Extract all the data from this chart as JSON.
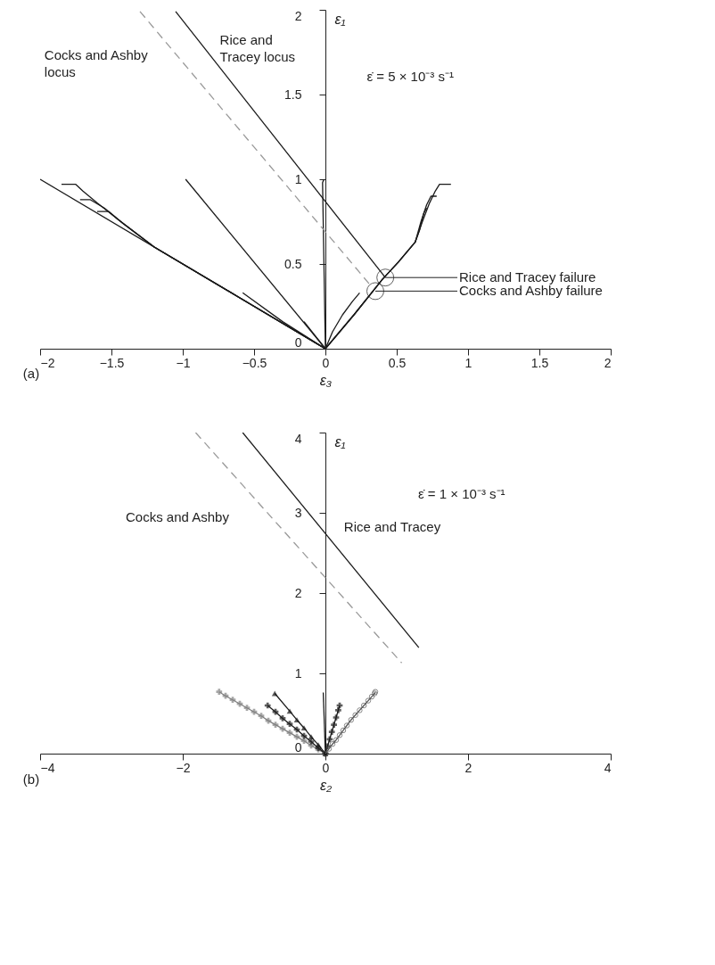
{
  "chart_data": [
    {
      "type": "line",
      "xlabel": "ε₃",
      "ylabel": "ε₁",
      "xlim": [
        -2,
        2
      ],
      "ylim": [
        0,
        2
      ],
      "xticks": [
        -2,
        -1.5,
        -1,
        -0.5,
        0,
        0.5,
        1,
        1.5,
        2
      ],
      "yticks": [
        0,
        0.5,
        1,
        1.5,
        2
      ],
      "annotations": [
        "(a)",
        "Cocks and Ashby\nlocus",
        "Rice and\nTracey locus",
        "ε̇ = 5 × 10⁻³ s⁻¹",
        {
          "text": "Rice and Tracey failure",
          "x": 0.42,
          "y": 0.42
        },
        {
          "text": "Cocks and Ashby failure",
          "x": 0.35,
          "y": 0.34
        }
      ],
      "series": [
        {
          "color": "#1a1a1a",
          "x": [
            0,
            -2
          ],
          "values": [
            0,
            1.0
          ]
        },
        {
          "color": "#1a1a1a",
          "x": [
            0,
            -0.6,
            -1.2,
            -1.45,
            -1.6,
            -1.7,
            -1.75,
            -1.85
          ],
          "values": [
            0,
            0.3,
            0.6,
            0.76,
            0.86,
            0.93,
            0.97,
            0.97
          ]
        },
        {
          "color": "#1a1a1a",
          "x": [
            0,
            -0.6,
            -1.2,
            -1.45,
            -1.55,
            -1.65,
            -1.72
          ],
          "values": [
            0,
            0.3,
            0.6,
            0.76,
            0.83,
            0.88,
            0.88
          ]
        },
        {
          "color": "#1a1a1a",
          "x": [
            0,
            -0.6,
            -1.2,
            -1.42,
            -1.52,
            -1.6
          ],
          "values": [
            0,
            0.3,
            0.6,
            0.74,
            0.81,
            0.81
          ]
        },
        {
          "color": "#1a1a1a",
          "x": [
            0,
            -0.3,
            -0.58
          ],
          "values": [
            0,
            0.16,
            0.33
          ]
        },
        {
          "color": "#1a1a1a",
          "x": [
            0,
            -0.98
          ],
          "values": [
            0,
            1.0
          ]
        },
        {
          "color": "#1a1a1a",
          "x": [
            0,
            -0.02,
            -0.01
          ],
          "values": [
            0,
            0.98,
            1.0
          ]
        },
        {
          "color": "#1a1a1a",
          "x": [
            0,
            -0.15
          ],
          "values": [
            0,
            0.16
          ]
        },
        {
          "color": "#1a1a1a",
          "x": [
            0,
            0.05,
            0.12,
            0.19,
            0.24
          ],
          "values": [
            0,
            0.1,
            0.2,
            0.28,
            0.33
          ]
        },
        {
          "color": "#1a1a1a",
          "x": [
            0,
            0.2,
            0.4,
            0.51,
            0.63,
            0.68,
            0.73,
            0.77,
            0.8,
            0.88
          ],
          "values": [
            0,
            0.2,
            0.41,
            0.51,
            0.63,
            0.75,
            0.86,
            0.93,
            0.97,
            0.97
          ]
        },
        {
          "color": "#1a1a1a",
          "x": [
            0,
            0.2,
            0.4,
            0.51,
            0.63,
            0.67,
            0.71,
            0.74,
            0.78
          ],
          "values": [
            0,
            0.2,
            0.41,
            0.51,
            0.63,
            0.75,
            0.85,
            0.9,
            0.9
          ]
        },
        {
          "color": "#1a1a1a",
          "x": [
            0,
            0.2,
            0.4,
            0.51,
            0.63,
            0.66,
            0.69,
            0.71
          ],
          "values": [
            0,
            0.2,
            0.41,
            0.51,
            0.63,
            0.7,
            0.8,
            0.83
          ]
        },
        {
          "color": "#1a1a1a",
          "x": [
            -1.05,
            0.42
          ],
          "values": [
            1.99,
            0.42
          ]
        },
        {
          "color": "#999999",
          "line_style": "dashed",
          "x": [
            -1.3,
            0.31
          ],
          "values": [
            1.99,
            0.38
          ]
        },
        {
          "type": "scatter",
          "marker": "circle",
          "color": "#1a1a1a",
          "x": [
            0.42,
            0.35
          ],
          "values": [
            0.42,
            0.34
          ]
        }
      ]
    },
    {
      "type": "line",
      "xlabel": "ε₂",
      "ylabel": "ε₁",
      "xlim": [
        -4,
        4
      ],
      "ylim": [
        0,
        4
      ],
      "xticks": [
        -4,
        -2,
        0,
        2,
        4
      ],
      "yticks": [
        0,
        1,
        2,
        3,
        4
      ],
      "annotations": [
        "(b)",
        "Cocks and Ashby",
        "Rice and Tracey",
        "ε̇ = 1 × 10⁻³ s⁻¹"
      ],
      "series": [
        {
          "color": "#808080",
          "marker": "cross",
          "x": [
            0,
            -0.1,
            -0.2,
            -0.3,
            -0.4,
            -0.5,
            -0.6,
            -0.7,
            -0.8,
            -0.9,
            -1.0,
            -1.1,
            -1.2,
            -1.3,
            -1.4,
            -1.49
          ],
          "values": [
            0,
            0.05,
            0.1,
            0.16,
            0.21,
            0.26,
            0.31,
            0.36,
            0.41,
            0.47,
            0.52,
            0.57,
            0.62,
            0.67,
            0.72,
            0.77
          ]
        },
        {
          "color": "#1a1a1a",
          "marker": "triangle",
          "x": [
            0,
            -0.1,
            -0.2,
            -0.3,
            -0.4,
            -0.5,
            -0.71
          ],
          "values": [
            0,
            0.11,
            0.21,
            0.32,
            0.42,
            0.53,
            0.75
          ]
        },
        {
          "color": "#1a1a1a",
          "marker": "cross",
          "x": [
            0,
            -0.1,
            -0.2,
            -0.3,
            -0.4,
            -0.5,
            -0.6,
            -0.7,
            -0.81
          ],
          "values": [
            0,
            0.07,
            0.15,
            0.22,
            0.3,
            0.37,
            0.44,
            0.52,
            0.6
          ]
        },
        {
          "color": "#1a1a1a",
          "x": [
            0,
            -0.03
          ],
          "values": [
            0,
            0.76
          ]
        },
        {
          "color": "#1a1a1a",
          "marker": "cross",
          "x": [
            0,
            0.03,
            0.06,
            0.09,
            0.12,
            0.15,
            0.18,
            0.2
          ],
          "values": [
            0,
            0.09,
            0.18,
            0.27,
            0.36,
            0.45,
            0.54,
            0.6
          ]
        },
        {
          "color": "#555555",
          "marker": "circle",
          "x": [
            0,
            0.05,
            0.1,
            0.15,
            0.2,
            0.25,
            0.3,
            0.36,
            0.42,
            0.48,
            0.54,
            0.6,
            0.65,
            0.69,
            0.7
          ],
          "values": [
            0,
            0.06,
            0.12,
            0.17,
            0.23,
            0.29,
            0.35,
            0.42,
            0.48,
            0.54,
            0.6,
            0.66,
            0.71,
            0.75,
            0.77
          ]
        },
        {
          "color": "#1a1a1a",
          "x": [
            -1.16,
            1.31
          ],
          "values": [
            4.0,
            1.32
          ]
        },
        {
          "color": "#999999",
          "line_style": "dashed",
          "x": [
            -1.82,
            1.07
          ],
          "values": [
            4.0,
            1.13
          ]
        }
      ]
    }
  ]
}
